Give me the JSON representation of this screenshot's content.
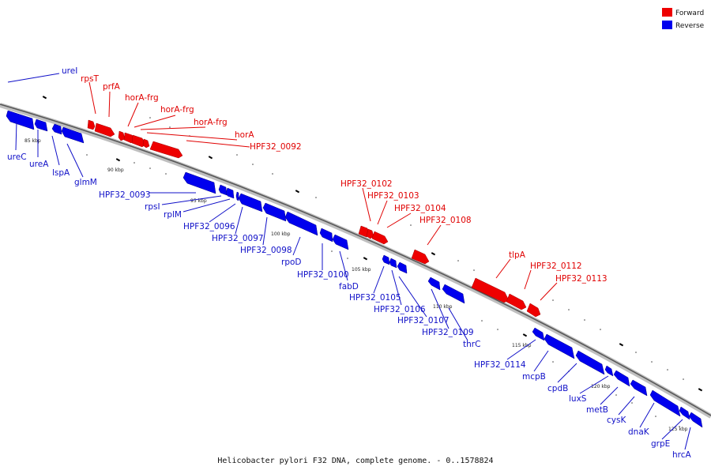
{
  "legend": {
    "forward": {
      "label": "Forward",
      "color": "#ee0000"
    },
    "reverse": {
      "label": "Reverse",
      "color": "#0000ee"
    }
  },
  "caption": "Helicobacter pylori F32 DNA, complete genome. - 0..1578824",
  "ticks": [
    "85 kbp",
    "90 kbp",
    "95 kbp",
    "100 kbp",
    "105 kbp",
    "110 kbp",
    "115 kbp",
    "120 kbp",
    "125 kbp"
  ],
  "forward_genes": [
    "rpsT",
    "prfA",
    "horA-frg",
    "horA-frg",
    "horA-frg",
    "horA",
    "HPF32_0092",
    "HPF32_0102",
    "HPF32_0103",
    "HPF32_0104",
    "HPF32_0108",
    "tlpA",
    "HPF32_0112",
    "HPF32_0113"
  ],
  "reverse_genes": [
    "ureI",
    "ureC",
    "ureA",
    "lspA",
    "glmM",
    "HPF32_0093",
    "rpsI",
    "rplM",
    "HPF32_0096",
    "HPF32_0097",
    "HPF32_0098",
    "rpoD",
    "HPF32_0100",
    "fabD",
    "HPF32_0105",
    "HPF32_0106",
    "HPF32_0107",
    "HPF32_0109",
    "thrC",
    "HPF32_0114",
    "mcpB",
    "cpdB",
    "luxS",
    "metB",
    "cysK",
    "dnaK",
    "grpE",
    "hrcA"
  ]
}
